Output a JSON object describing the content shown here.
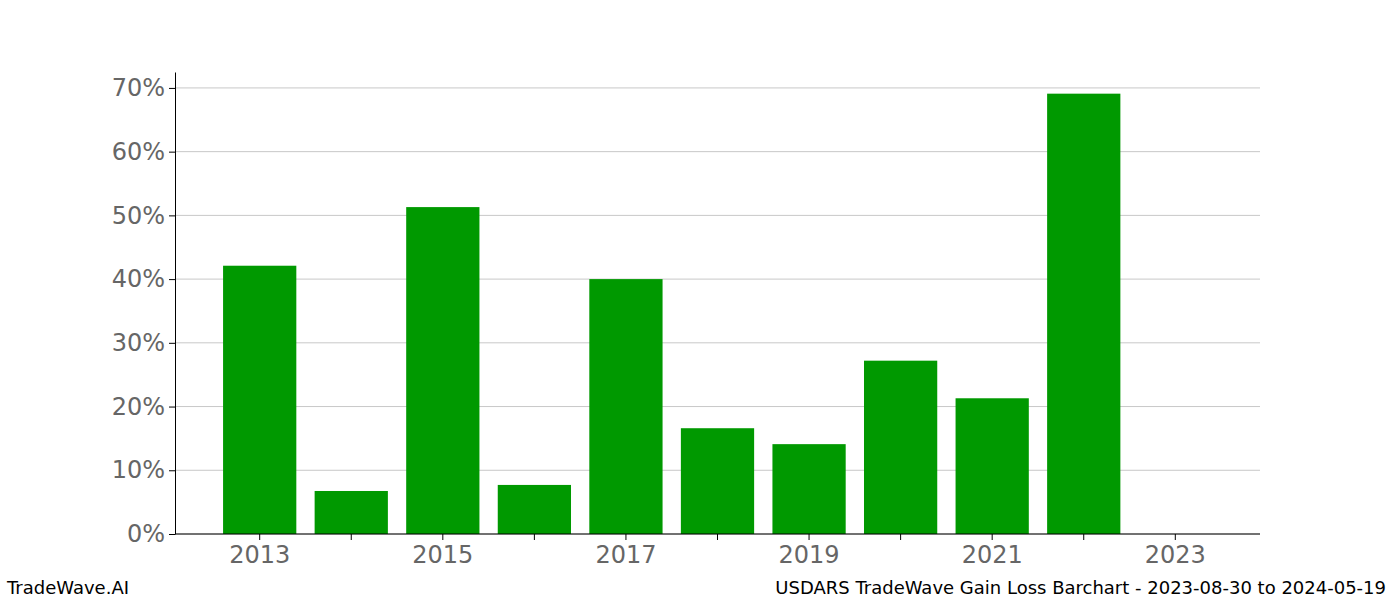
{
  "chart_data": {
    "type": "bar",
    "title": "USDARS TradeWave Gain Loss Barchart - 2023-08-30 to 2024-05-19",
    "source": "TradeWave.AI",
    "categories": [
      "2013",
      null,
      "2015",
      null,
      "2017",
      null,
      "2019",
      null,
      "2021",
      null,
      "2023"
    ],
    "values": [
      42.1,
      6.75,
      51.3,
      7.7,
      40.0,
      16.6,
      14.1,
      27.2,
      21.3,
      69.1,
      null
    ],
    "color": "#009900",
    "ylim": [
      0,
      72.5
    ],
    "yticks": [
      {
        "value": 0,
        "label": "0%"
      },
      {
        "value": 10,
        "label": "10%"
      },
      {
        "value": 20,
        "label": "20%"
      },
      {
        "value": 30,
        "label": "30%"
      },
      {
        "value": 40,
        "label": "40%"
      },
      {
        "value": 50,
        "label": "50%"
      },
      {
        "value": 60,
        "label": "60%"
      },
      {
        "value": 70,
        "label": "70%"
      }
    ],
    "grid": true
  }
}
